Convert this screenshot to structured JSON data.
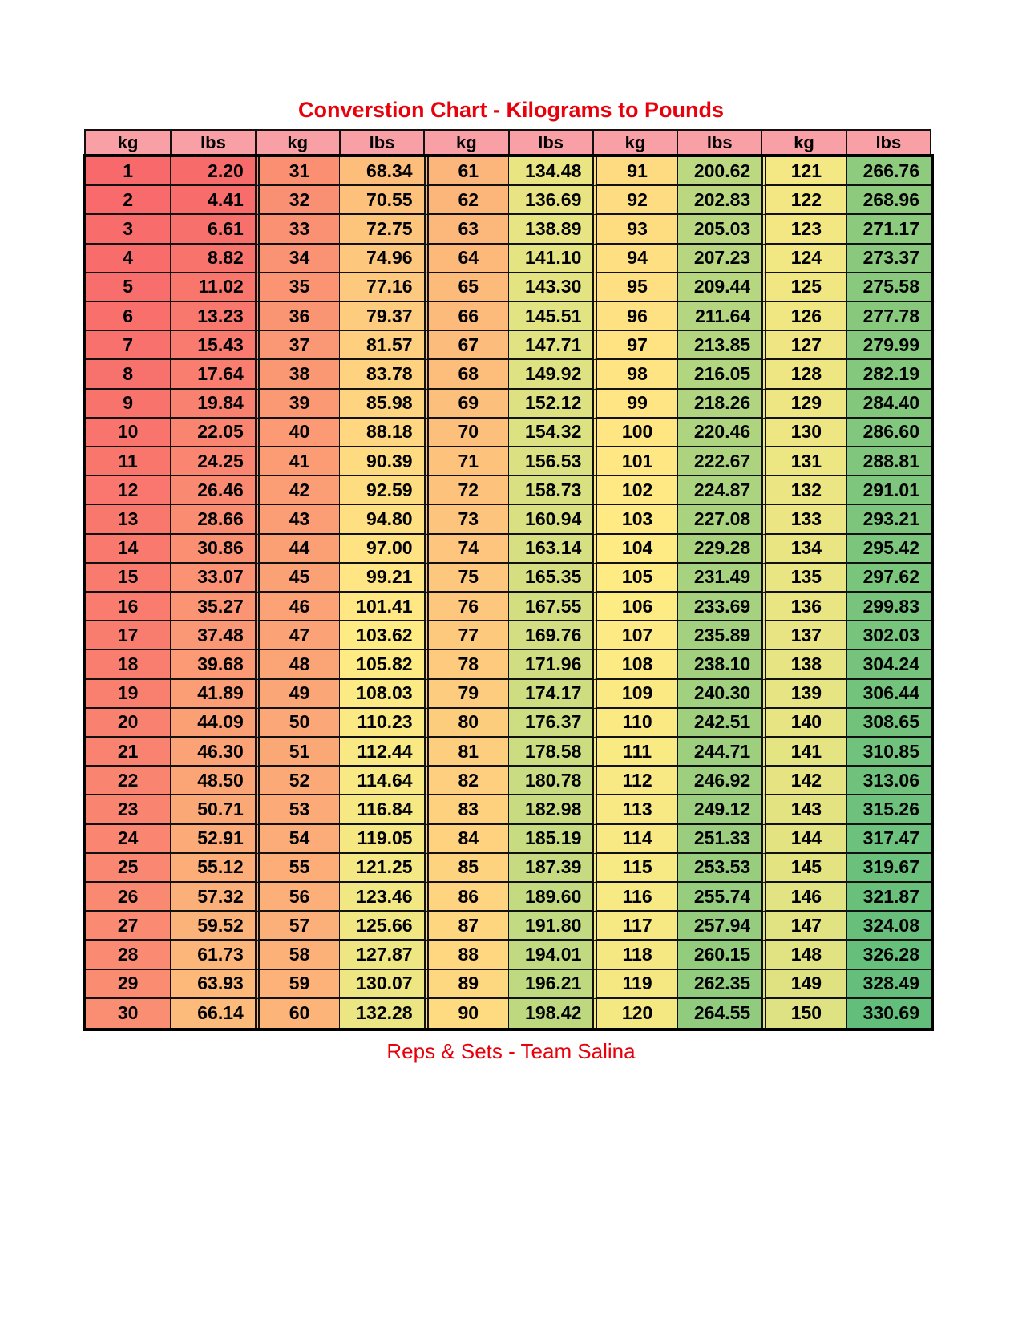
{
  "title": "Converstion Chart - Kilograms to Pounds",
  "footer": "Reps & Sets - Team Salina",
  "headers": [
    "kg",
    "lbs",
    "kg",
    "lbs",
    "kg",
    "lbs",
    "kg",
    "lbs",
    "kg",
    "lbs"
  ],
  "color_scale": {
    "min": "#F8696B",
    "mid": "#FFEB84",
    "max": "#63BE7B"
  },
  "groups": [
    {
      "kg": [
        "1",
        "2",
        "3",
        "4",
        "5",
        "6",
        "7",
        "8",
        "9",
        "10",
        "11",
        "12",
        "13",
        "14",
        "15",
        "16",
        "17",
        "18",
        "19",
        "20",
        "21",
        "22",
        "23",
        "24",
        "25",
        "26",
        "27",
        "28",
        "29",
        "30"
      ],
      "lbs": [
        "2.20",
        "4.41",
        "6.61",
        "8.82",
        "11.02",
        "13.23",
        "15.43",
        "17.64",
        "19.84",
        "22.05",
        "24.25",
        "26.46",
        "28.66",
        "30.86",
        "33.07",
        "35.27",
        "37.48",
        "39.68",
        "41.89",
        "44.09",
        "46.30",
        "48.50",
        "50.71",
        "52.91",
        "55.12",
        "57.32",
        "59.52",
        "61.73",
        "63.93",
        "66.14"
      ]
    },
    {
      "kg": [
        "31",
        "32",
        "33",
        "34",
        "35",
        "36",
        "37",
        "38",
        "39",
        "40",
        "41",
        "42",
        "43",
        "44",
        "45",
        "46",
        "47",
        "48",
        "49",
        "50",
        "51",
        "52",
        "53",
        "54",
        "55",
        "56",
        "57",
        "58",
        "59",
        "60"
      ],
      "lbs": [
        "68.34",
        "70.55",
        "72.75",
        "74.96",
        "77.16",
        "79.37",
        "81.57",
        "83.78",
        "85.98",
        "88.18",
        "90.39",
        "92.59",
        "94.80",
        "97.00",
        "99.21",
        "101.41",
        "103.62",
        "105.82",
        "108.03",
        "110.23",
        "112.44",
        "114.64",
        "116.84",
        "119.05",
        "121.25",
        "123.46",
        "125.66",
        "127.87",
        "130.07",
        "132.28"
      ]
    },
    {
      "kg": [
        "61",
        "62",
        "63",
        "64",
        "65",
        "66",
        "67",
        "68",
        "69",
        "70",
        "71",
        "72",
        "73",
        "74",
        "75",
        "76",
        "77",
        "78",
        "79",
        "80",
        "81",
        "82",
        "83",
        "84",
        "85",
        "86",
        "87",
        "88",
        "89",
        "90"
      ],
      "lbs": [
        "134.48",
        "136.69",
        "138.89",
        "141.10",
        "143.30",
        "145.51",
        "147.71",
        "149.92",
        "152.12",
        "154.32",
        "156.53",
        "158.73",
        "160.94",
        "163.14",
        "165.35",
        "167.55",
        "169.76",
        "171.96",
        "174.17",
        "176.37",
        "178.58",
        "180.78",
        "182.98",
        "185.19",
        "187.39",
        "189.60",
        "191.80",
        "194.01",
        "196.21",
        "198.42"
      ]
    },
    {
      "kg": [
        "91",
        "92",
        "93",
        "94",
        "95",
        "96",
        "97",
        "98",
        "99",
        "100",
        "101",
        "102",
        "103",
        "104",
        "105",
        "106",
        "107",
        "108",
        "109",
        "110",
        "111",
        "112",
        "113",
        "114",
        "115",
        "116",
        "117",
        "118",
        "119",
        "120"
      ],
      "lbs": [
        "200.62",
        "202.83",
        "205.03",
        "207.23",
        "209.44",
        "211.64",
        "213.85",
        "216.05",
        "218.26",
        "220.46",
        "222.67",
        "224.87",
        "227.08",
        "229.28",
        "231.49",
        "233.69",
        "235.89",
        "238.10",
        "240.30",
        "242.51",
        "244.71",
        "246.92",
        "249.12",
        "251.33",
        "253.53",
        "255.74",
        "257.94",
        "260.15",
        "262.35",
        "264.55"
      ]
    },
    {
      "kg": [
        "121",
        "122",
        "123",
        "124",
        "125",
        "126",
        "127",
        "128",
        "129",
        "130",
        "131",
        "132",
        "133",
        "134",
        "135",
        "136",
        "137",
        "138",
        "139",
        "140",
        "141",
        "142",
        "143",
        "144",
        "145",
        "146",
        "147",
        "148",
        "149",
        "150"
      ],
      "lbs": [
        "266.76",
        "268.96",
        "271.17",
        "273.37",
        "275.58",
        "277.78",
        "279.99",
        "282.19",
        "284.40",
        "286.60",
        "288.81",
        "291.01",
        "293.21",
        "295.42",
        "297.62",
        "299.83",
        "302.03",
        "304.24",
        "306.44",
        "308.65",
        "310.85",
        "313.06",
        "315.26",
        "317.47",
        "319.67",
        "321.87",
        "324.08",
        "326.28",
        "328.49",
        "330.69"
      ]
    }
  ]
}
